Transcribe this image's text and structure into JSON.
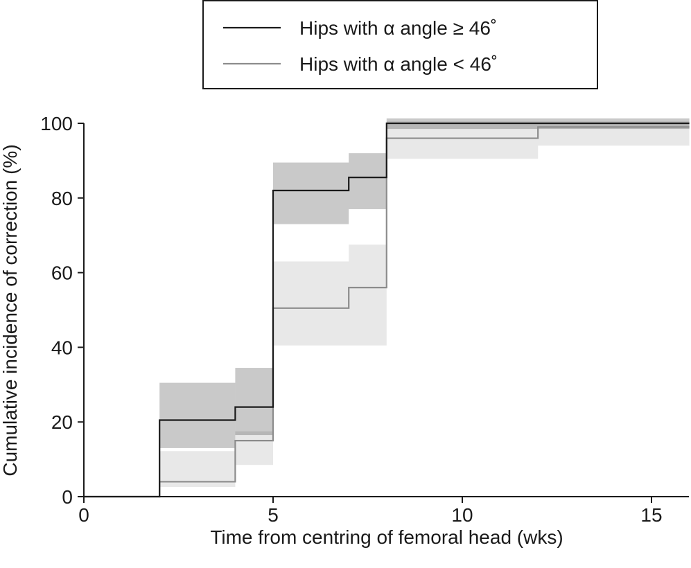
{
  "chart_data": {
    "type": "step",
    "x_label": "Time from centring of femoral head (wks)",
    "y_label": "Cumulative incidence of correction (%)",
    "xlim": [
      0,
      16
    ],
    "xticks": [
      0,
      5,
      10,
      15
    ],
    "ylim": [
      0,
      100
    ],
    "yticks": [
      0,
      20,
      40,
      60,
      80,
      100
    ],
    "legend": "top",
    "series": [
      {
        "name": "Hips with α angle ≥ 46˚",
        "color": "#1a1a1a",
        "band_color": "rgba(0,0,0,0.21)",
        "x": [
          0,
          2,
          4,
          5,
          7,
          8,
          16
        ],
        "values": [
          0,
          20.5,
          24,
          82,
          85.5,
          100,
          100
        ],
        "lower": [
          null,
          13,
          16.5,
          73,
          77,
          98.5,
          null
        ],
        "upper": [
          null,
          30.5,
          34.5,
          89.5,
          92,
          101.3,
          null
        ]
      },
      {
        "name": "Hips with α angle < 46˚",
        "color": "#8c8c8c",
        "band_color": "rgba(0,0,0,0.09)",
        "x": [
          0,
          2,
          4,
          5,
          7,
          8,
          12,
          16
        ],
        "values": [
          0,
          4,
          15,
          50.5,
          56,
          96,
          99,
          99
        ],
        "lower": [
          null,
          2.6,
          8.5,
          40.5,
          40.5,
          90.5,
          94,
          null
        ],
        "upper": [
          null,
          12.2,
          17.5,
          63,
          67.5,
          100.5,
          100.5,
          null
        ]
      }
    ]
  }
}
